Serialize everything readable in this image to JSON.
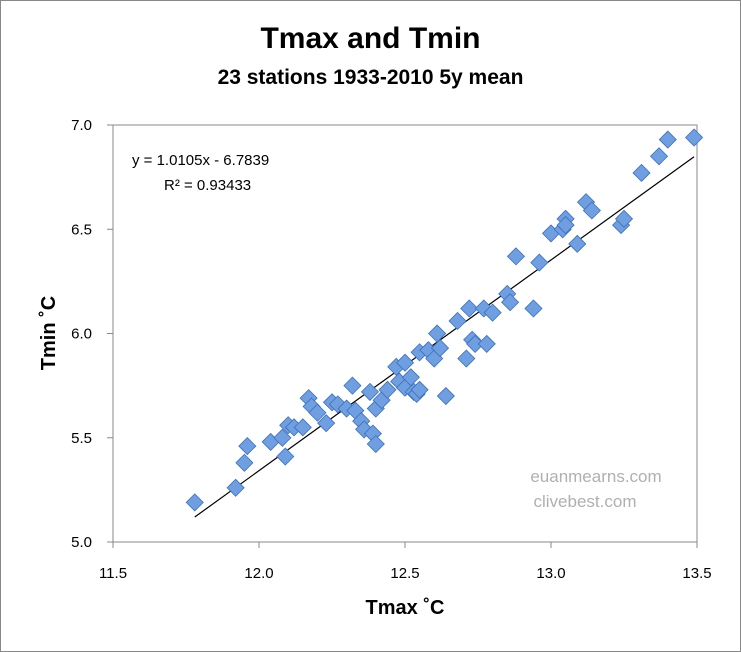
{
  "chart_data": {
    "type": "scatter",
    "title": "Tmax and Tmin",
    "subtitle": "23 stations 1933-2010 5y mean",
    "xlabel": "Tmax ˚C",
    "ylabel": "Tmin ˚C",
    "xlim": [
      11.5,
      13.5
    ],
    "ylim": [
      5.0,
      7.0
    ],
    "xticks": [
      "11.5",
      "12.0",
      "12.5",
      "13.0",
      "13.5"
    ],
    "yticks": [
      "5.0",
      "5.5",
      "6.0",
      "6.5",
      "7.0"
    ],
    "grid": false,
    "marker_color": "#6f9fe0",
    "trendline": {
      "slope": 1.0105,
      "intercept": -6.7839,
      "x_range": [
        11.78,
        13.49
      ],
      "equation": "y = 1.0105x - 6.7839",
      "r_squared": "R² = 0.93433"
    },
    "watermarks": [
      "euanmearns.com",
      "clivebest.com"
    ],
    "points": [
      [
        11.78,
        5.19
      ],
      [
        11.92,
        5.26
      ],
      [
        11.95,
        5.38
      ],
      [
        11.96,
        5.46
      ],
      [
        12.04,
        5.48
      ],
      [
        12.08,
        5.5
      ],
      [
        12.09,
        5.41
      ],
      [
        12.1,
        5.56
      ],
      [
        12.12,
        5.55
      ],
      [
        12.15,
        5.55
      ],
      [
        12.17,
        5.69
      ],
      [
        12.18,
        5.65
      ],
      [
        12.2,
        5.62
      ],
      [
        12.23,
        5.57
      ],
      [
        12.25,
        5.67
      ],
      [
        12.27,
        5.66
      ],
      [
        12.3,
        5.64
      ],
      [
        12.32,
        5.75
      ],
      [
        12.33,
        5.63
      ],
      [
        12.35,
        5.58
      ],
      [
        12.36,
        5.54
      ],
      [
        12.38,
        5.72
      ],
      [
        12.39,
        5.52
      ],
      [
        12.4,
        5.47
      ],
      [
        12.4,
        5.64
      ],
      [
        12.42,
        5.68
      ],
      [
        12.44,
        5.73
      ],
      [
        12.47,
        5.84
      ],
      [
        12.48,
        5.77
      ],
      [
        12.5,
        5.86
      ],
      [
        12.5,
        5.74
      ],
      [
        12.52,
        5.79
      ],
      [
        12.53,
        5.72
      ],
      [
        12.54,
        5.71
      ],
      [
        12.55,
        5.73
      ],
      [
        12.55,
        5.91
      ],
      [
        12.58,
        5.92
      ],
      [
        12.6,
        5.88
      ],
      [
        12.61,
        6.0
      ],
      [
        12.62,
        5.93
      ],
      [
        12.64,
        5.7
      ],
      [
        12.68,
        6.06
      ],
      [
        12.71,
        5.88
      ],
      [
        12.72,
        6.12
      ],
      [
        12.73,
        5.97
      ],
      [
        12.74,
        5.95
      ],
      [
        12.77,
        6.12
      ],
      [
        12.78,
        5.95
      ],
      [
        12.8,
        6.1
      ],
      [
        12.85,
        6.19
      ],
      [
        12.86,
        6.15
      ],
      [
        12.88,
        6.37
      ],
      [
        12.94,
        6.12
      ],
      [
        12.96,
        6.34
      ],
      [
        13.0,
        6.48
      ],
      [
        13.04,
        6.5
      ],
      [
        13.05,
        6.55
      ],
      [
        13.05,
        6.52
      ],
      [
        13.09,
        6.43
      ],
      [
        13.12,
        6.63
      ],
      [
        13.14,
        6.59
      ],
      [
        13.24,
        6.52
      ],
      [
        13.25,
        6.55
      ],
      [
        13.31,
        6.77
      ],
      [
        13.37,
        6.85
      ],
      [
        13.4,
        6.93
      ],
      [
        13.49,
        6.94
      ]
    ]
  }
}
